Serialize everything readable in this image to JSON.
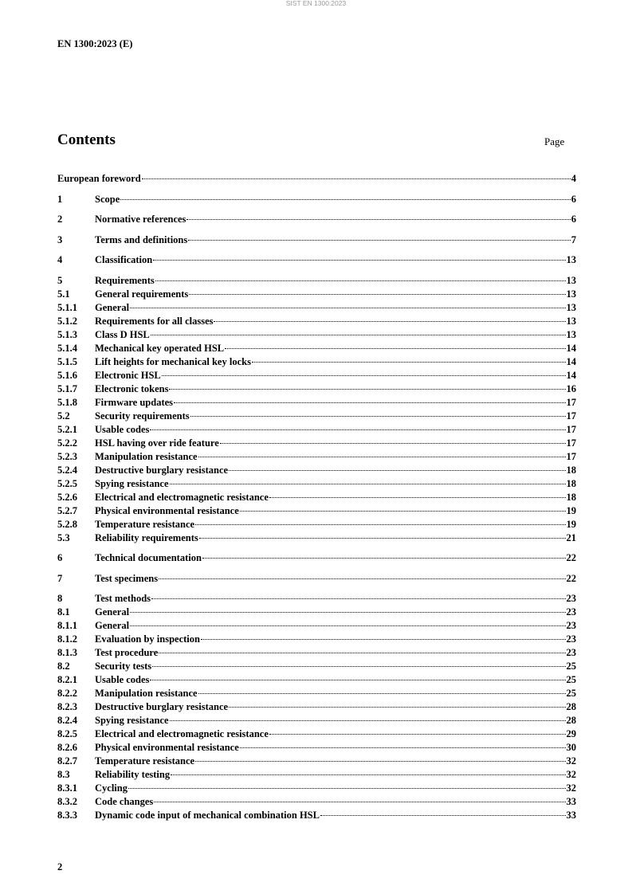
{
  "watermark": "SIST EN 1300:2023",
  "doc_id": "EN 1300:2023 (E)",
  "contents_title": "Contents",
  "page_label": "Page",
  "toc": [
    {
      "num": "",
      "title": "European foreword",
      "page": "4",
      "level": 0
    },
    {
      "num": "1",
      "title": "Scope",
      "page": "6",
      "level": 1
    },
    {
      "num": "2",
      "title": "Normative references",
      "page": "6",
      "level": 1
    },
    {
      "num": "3",
      "title": "Terms and definitions",
      "page": "7",
      "level": 1
    },
    {
      "num": "4",
      "title": "Classification",
      "page": "13",
      "level": 1
    },
    {
      "num": "5",
      "title": "Requirements",
      "page": "13",
      "level": 1
    },
    {
      "num": "5.1",
      "title": "General requirements",
      "page": "13",
      "level": 2
    },
    {
      "num": "5.1.1",
      "title": "General",
      "page": "13",
      "level": 3
    },
    {
      "num": "5.1.2",
      "title": "Requirements for all classes",
      "page": "13",
      "level": 3
    },
    {
      "num": "5.1.3",
      "title": "Class D HSL",
      "page": "13",
      "level": 3
    },
    {
      "num": "5.1.4",
      "title": "Mechanical key operated HSL",
      "page": "14",
      "level": 3
    },
    {
      "num": "5.1.5",
      "title": "Lift heights for mechanical key locks",
      "page": "14",
      "level": 3
    },
    {
      "num": "5.1.6",
      "title": "Electronic HSL",
      "page": "14",
      "level": 3
    },
    {
      "num": "5.1.7",
      "title": "Electronic tokens",
      "page": "16",
      "level": 3
    },
    {
      "num": "5.1.8",
      "title": "Firmware updates",
      "page": "17",
      "level": 3
    },
    {
      "num": "5.2",
      "title": "Security requirements",
      "page": "17",
      "level": 2
    },
    {
      "num": "5.2.1",
      "title": "Usable codes",
      "page": "17",
      "level": 3
    },
    {
      "num": "5.2.2",
      "title": "HSL having over ride feature",
      "page": "17",
      "level": 3
    },
    {
      "num": "5.2.3",
      "title": "Manipulation resistance",
      "page": "17",
      "level": 3
    },
    {
      "num": "5.2.4",
      "title": "Destructive burglary resistance",
      "page": "18",
      "level": 3
    },
    {
      "num": "5.2.5",
      "title": "Spying resistance",
      "page": "18",
      "level": 3
    },
    {
      "num": "5.2.6",
      "title": "Electrical and electromagnetic resistance",
      "page": "18",
      "level": 3
    },
    {
      "num": "5.2.7",
      "title": "Physical environmental resistance",
      "page": "19",
      "level": 3
    },
    {
      "num": "5.2.8",
      "title": "Temperature resistance",
      "page": "19",
      "level": 3
    },
    {
      "num": "5.3",
      "title": "Reliability requirements",
      "page": "21",
      "level": 2
    },
    {
      "num": "6",
      "title": "Technical documentation",
      "page": "22",
      "level": 1
    },
    {
      "num": "7",
      "title": "Test specimens",
      "page": "22",
      "level": 1
    },
    {
      "num": "8",
      "title": "Test methods",
      "page": "23",
      "level": 1
    },
    {
      "num": "8.1",
      "title": "General",
      "page": "23",
      "level": 2
    },
    {
      "num": "8.1.1",
      "title": "General",
      "page": "23",
      "level": 3
    },
    {
      "num": "8.1.2",
      "title": "Evaluation by inspection",
      "page": "23",
      "level": 3
    },
    {
      "num": "8.1.3",
      "title": "Test procedure",
      "page": "23",
      "level": 3
    },
    {
      "num": "8.2",
      "title": "Security tests",
      "page": "25",
      "level": 2
    },
    {
      "num": "8.2.1",
      "title": "Usable codes",
      "page": "25",
      "level": 3
    },
    {
      "num": "8.2.2",
      "title": "Manipulation resistance",
      "page": "25",
      "level": 3
    },
    {
      "num": "8.2.3",
      "title": "Destructive burglary resistance",
      "page": "28",
      "level": 3
    },
    {
      "num": "8.2.4",
      "title": "Spying resistance",
      "page": "28",
      "level": 3
    },
    {
      "num": "8.2.5",
      "title": "Electrical and electromagnetic resistance",
      "page": "29",
      "level": 3
    },
    {
      "num": "8.2.6",
      "title": "Physical environmental resistance",
      "page": "30",
      "level": 3
    },
    {
      "num": "8.2.7",
      "title": "Temperature resistance",
      "page": "32",
      "level": 3
    },
    {
      "num": "8.3",
      "title": "Reliability testing",
      "page": "32",
      "level": 2
    },
    {
      "num": "8.3.1",
      "title": "Cycling",
      "page": "32",
      "level": 3
    },
    {
      "num": "8.3.2",
      "title": "Code changes",
      "page": "33",
      "level": 3
    },
    {
      "num": "8.3.3",
      "title": "Dynamic code input of mechanical combination HSL",
      "page": "33",
      "level": 3
    }
  ],
  "page_number": "2"
}
